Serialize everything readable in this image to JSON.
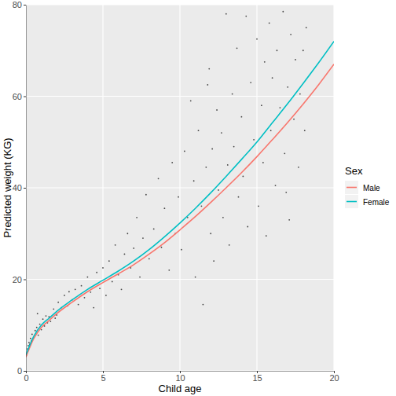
{
  "chart_data": {
    "type": "scatter",
    "x_label": "Child age",
    "y_label": "Predicted weight (KG)",
    "xlim": [
      0,
      20
    ],
    "ylim": [
      0,
      80
    ],
    "xticks": [
      0,
      5,
      10,
      15,
      20
    ],
    "yticks": [
      0,
      20,
      40,
      60,
      80
    ],
    "grid": true,
    "legend": "right",
    "legend_title": "Sex",
    "points": {
      "type": "scatter",
      "color": "#000000",
      "marker": "circle",
      "x": [
        0.05,
        0.1,
        0.15,
        0.2,
        0.25,
        0.3,
        0.35,
        0.4,
        0.5,
        0.6,
        0.7,
        0.8,
        0.9,
        1.0,
        1.1,
        1.2,
        1.3,
        1.4,
        1.5,
        0.75,
        1.6,
        1.8,
        2.0,
        2.1,
        2.3,
        2.5,
        2.7,
        2.8,
        3.0,
        1.9,
        3.2,
        3.4,
        3.6,
        3.8,
        4.0,
        4.2,
        4.4,
        4.6,
        4.8,
        5.0,
        5.2,
        5.4,
        5.6,
        5.8,
        6.0,
        6.2,
        6.4,
        6.6,
        6.8,
        7.0,
        7.2,
        7.4,
        7.6,
        7.8,
        8.0,
        8.3,
        8.6,
        8.8,
        9.0,
        9.3,
        9.5,
        9.7,
        9.9,
        10.1,
        10.3,
        10.5,
        10.7,
        10.9,
        11.0,
        11.2,
        11.4,
        11.5,
        11.7,
        11.8,
        12.0,
        12.1,
        12.2,
        12.4,
        12.5,
        11.9,
        12.7,
        12.8,
        13.0,
        13.1,
        13.2,
        13.4,
        13.5,
        13.7,
        13.8,
        14.0,
        14.1,
        14.3,
        14.4,
        14.6,
        14.8,
        15.0,
        15.1,
        15.3,
        15.4,
        15.5,
        15.6,
        15.8,
        15.9,
        16.0,
        16.2,
        16.3,
        16.5,
        16.7,
        16.8,
        17.0,
        17.1,
        17.2,
        17.4,
        17.5,
        17.7,
        17.8,
        18.0,
        18.1,
        18.2,
        16.9
      ],
      "values": [
        3.5,
        4.8,
        5.5,
        6.2,
        5.8,
        7.1,
        6.5,
        8.0,
        7.2,
        8.8,
        9.5,
        7.8,
        10.2,
        9.0,
        11.3,
        9.8,
        12.0,
        10.5,
        11.8,
        12.5,
        10.8,
        13.5,
        12.2,
        15.0,
        13.8,
        16.5,
        14.2,
        17.3,
        15.5,
        11.5,
        17.8,
        14.5,
        18.6,
        16.0,
        20.5,
        17.2,
        13.8,
        21.5,
        18.0,
        22.5,
        16.5,
        24.0,
        19.5,
        27.5,
        21.0,
        17.8,
        25.5,
        30.0,
        22.5,
        26.8,
        33.5,
        20.5,
        29.0,
        38.5,
        24.5,
        31.0,
        42.0,
        27.0,
        35.5,
        22.0,
        45.5,
        30.0,
        38.0,
        26.5,
        48.0,
        33.5,
        59.0,
        41.5,
        20.5,
        52.5,
        36.0,
        14.5,
        44.5,
        62.5,
        30.0,
        48.5,
        24.0,
        57.0,
        39.5,
        66.0,
        52.0,
        33.5,
        78.0,
        45.0,
        27.5,
        60.5,
        49.0,
        70.5,
        38.0,
        55.5,
        42.5,
        77.5,
        31.5,
        63.0,
        50.5,
        72.5,
        36.0,
        58.0,
        45.5,
        67.5,
        29.5,
        76.0,
        52.5,
        64.0,
        40.5,
        70.0,
        57.5,
        78.5,
        47.5,
        62.0,
        33.0,
        73.5,
        55.0,
        68.0,
        44.5,
        60.5,
        70.0,
        52.5,
        75.0,
        39.0
      ]
    },
    "series": [
      {
        "name": "Male",
        "type": "line",
        "color": "#F8766D",
        "line_style": "solid",
        "x": [
          0,
          0.5,
          1,
          1.5,
          2,
          3,
          4,
          5,
          6,
          7,
          8,
          9,
          10,
          11,
          12,
          13,
          14,
          15,
          16,
          17,
          18,
          19,
          20
        ],
        "values": [
          3,
          7,
          9.5,
          11,
          12.5,
          15,
          17.3,
          19.3,
          21.2,
          23.2,
          25.5,
          28,
          30.8,
          33.7,
          36.8,
          40,
          43.3,
          46.8,
          50.5,
          54.3,
          58.3,
          62.5,
          67
        ]
      },
      {
        "name": "Female",
        "type": "line",
        "color": "#00BFC4",
        "line_style": "solid",
        "x": [
          0,
          0.5,
          1,
          1.5,
          2,
          3,
          4,
          5,
          6,
          7,
          8,
          9,
          10,
          11,
          12,
          13,
          14,
          15,
          16,
          17,
          18,
          19,
          20
        ],
        "values": [
          3.5,
          7.5,
          10,
          11.5,
          13,
          15.5,
          17.8,
          19.8,
          21.8,
          24,
          26.5,
          29.3,
          32.3,
          35.5,
          38.9,
          42.5,
          46.2,
          50,
          54.2,
          58.4,
          62.8,
          67.3,
          72
        ]
      }
    ]
  }
}
